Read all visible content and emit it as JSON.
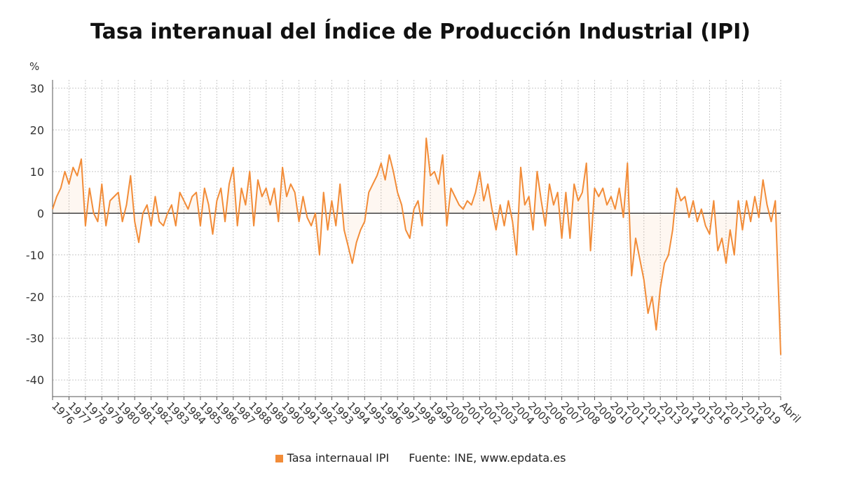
{
  "chart_data": {
    "type": "line",
    "title": "Tasa interanual del Índice de Producción Industrial (IPI)",
    "ylabel": "%",
    "ylim": [
      -44,
      32
    ],
    "yticks": [
      30,
      20,
      10,
      0,
      -10,
      -20,
      -30,
      -40
    ],
    "x_tick_labels": [
      "1976",
      "1977",
      "1978",
      "1979",
      "1980",
      "1981",
      "1982",
      "1983",
      "1984",
      "1985",
      "1986",
      "1987",
      "1988",
      "1989",
      "1990",
      "1991",
      "1992",
      "1993",
      "1994",
      "1995",
      "1996",
      "1997",
      "1998",
      "1999",
      "2000",
      "2001",
      "2002",
      "2003",
      "2004",
      "2005",
      "2006",
      "2007",
      "2008",
      "2009",
      "2010",
      "2011",
      "2012",
      "2013",
      "2014",
      "2015",
      "2016",
      "2017",
      "2018",
      "2019",
      "Abril"
    ],
    "xrange": [
      1976,
      2020.33
    ],
    "grid": true,
    "series": [
      {
        "name": "Tasa internaual IPI",
        "color": "#f28c38",
        "points": [
          [
            1976.0,
            1
          ],
          [
            1976.25,
            4
          ],
          [
            1976.5,
            6
          ],
          [
            1976.75,
            10
          ],
          [
            1977.0,
            7
          ],
          [
            1977.25,
            11
          ],
          [
            1977.5,
            9
          ],
          [
            1977.75,
            13
          ],
          [
            1978.0,
            -3
          ],
          [
            1978.25,
            6
          ],
          [
            1978.5,
            0
          ],
          [
            1978.75,
            -2
          ],
          [
            1979.0,
            7
          ],
          [
            1979.25,
            -3
          ],
          [
            1979.5,
            3
          ],
          [
            1979.75,
            4
          ],
          [
            1980.0,
            5
          ],
          [
            1980.25,
            -2
          ],
          [
            1980.5,
            2
          ],
          [
            1980.75,
            9
          ],
          [
            1981.0,
            -2
          ],
          [
            1981.25,
            -7
          ],
          [
            1981.5,
            0
          ],
          [
            1981.75,
            2
          ],
          [
            1982.0,
            -3
          ],
          [
            1982.25,
            4
          ],
          [
            1982.5,
            -2
          ],
          [
            1982.75,
            -3
          ],
          [
            1983.0,
            0
          ],
          [
            1983.25,
            2
          ],
          [
            1983.5,
            -3
          ],
          [
            1983.75,
            5
          ],
          [
            1984.0,
            3
          ],
          [
            1984.25,
            1
          ],
          [
            1984.5,
            4
          ],
          [
            1984.75,
            5
          ],
          [
            1985.0,
            -3
          ],
          [
            1985.25,
            6
          ],
          [
            1985.5,
            2
          ],
          [
            1985.75,
            -5
          ],
          [
            1986.0,
            3
          ],
          [
            1986.25,
            6
          ],
          [
            1986.5,
            -2
          ],
          [
            1986.75,
            7
          ],
          [
            1987.0,
            11
          ],
          [
            1987.25,
            -3
          ],
          [
            1987.5,
            6
          ],
          [
            1987.75,
            2
          ],
          [
            1988.0,
            10
          ],
          [
            1988.25,
            -3
          ],
          [
            1988.5,
            8
          ],
          [
            1988.75,
            4
          ],
          [
            1989.0,
            6
          ],
          [
            1989.25,
            2
          ],
          [
            1989.5,
            6
          ],
          [
            1989.75,
            -2
          ],
          [
            1990.0,
            11
          ],
          [
            1990.25,
            4
          ],
          [
            1990.5,
            7
          ],
          [
            1990.75,
            5
          ],
          [
            1991.0,
            -2
          ],
          [
            1991.25,
            4
          ],
          [
            1991.5,
            -1
          ],
          [
            1991.75,
            -3
          ],
          [
            1992.0,
            0
          ],
          [
            1992.25,
            -10
          ],
          [
            1992.5,
            5
          ],
          [
            1992.75,
            -4
          ],
          [
            1993.0,
            3
          ],
          [
            1993.25,
            -3
          ],
          [
            1993.5,
            7
          ],
          [
            1993.75,
            -4
          ],
          [
            1994.0,
            -8
          ],
          [
            1994.25,
            -12
          ],
          [
            1994.5,
            -7
          ],
          [
            1994.75,
            -4
          ],
          [
            1995.0,
            -2
          ],
          [
            1995.25,
            5
          ],
          [
            1995.5,
            7
          ],
          [
            1995.75,
            9
          ],
          [
            1996.0,
            12
          ],
          [
            1996.25,
            8
          ],
          [
            1996.5,
            14
          ],
          [
            1996.75,
            10
          ],
          [
            1997.0,
            5
          ],
          [
            1997.25,
            2
          ],
          [
            1997.5,
            -4
          ],
          [
            1997.75,
            -6
          ],
          [
            1998.0,
            1
          ],
          [
            1998.25,
            3
          ],
          [
            1998.5,
            -3
          ],
          [
            1998.75,
            18
          ],
          [
            1999.0,
            9
          ],
          [
            1999.25,
            10
          ],
          [
            1999.5,
            7
          ],
          [
            1999.75,
            14
          ],
          [
            2000.0,
            -3
          ],
          [
            2000.25,
            6
          ],
          [
            2000.5,
            4
          ],
          [
            2000.75,
            2
          ],
          [
            2001.0,
            1
          ],
          [
            2001.25,
            3
          ],
          [
            2001.5,
            2
          ],
          [
            2001.75,
            5
          ],
          [
            2002.0,
            10
          ],
          [
            2002.25,
            3
          ],
          [
            2002.5,
            7
          ],
          [
            2002.75,
            1
          ],
          [
            2003.0,
            -4
          ],
          [
            2003.25,
            2
          ],
          [
            2003.5,
            -3
          ],
          [
            2003.75,
            3
          ],
          [
            2004.0,
            -2
          ],
          [
            2004.25,
            -10
          ],
          [
            2004.5,
            11
          ],
          [
            2004.75,
            2
          ],
          [
            2005.0,
            4
          ],
          [
            2005.25,
            -4
          ],
          [
            2005.5,
            10
          ],
          [
            2005.75,
            3
          ],
          [
            2006.0,
            -3
          ],
          [
            2006.25,
            7
          ],
          [
            2006.5,
            2
          ],
          [
            2006.75,
            5
          ],
          [
            2007.0,
            -6
          ],
          [
            2007.25,
            5
          ],
          [
            2007.5,
            -6
          ],
          [
            2007.75,
            7
          ],
          [
            2008.0,
            3
          ],
          [
            2008.25,
            5
          ],
          [
            2008.5,
            12
          ],
          [
            2008.75,
            -9
          ],
          [
            2009.0,
            6
          ],
          [
            2009.25,
            4
          ],
          [
            2009.5,
            6
          ],
          [
            2009.75,
            2
          ],
          [
            2010.0,
            4
          ],
          [
            2010.25,
            1
          ],
          [
            2010.5,
            6
          ],
          [
            2010.75,
            -1
          ],
          [
            2011.0,
            12
          ],
          [
            2011.25,
            -15
          ],
          [
            2011.5,
            -6
          ],
          [
            2011.75,
            -11
          ],
          [
            2012.0,
            -16
          ],
          [
            2012.25,
            -24
          ],
          [
            2012.5,
            -20
          ],
          [
            2012.75,
            -28
          ],
          [
            2013.0,
            -18
          ],
          [
            2013.25,
            -12
          ],
          [
            2013.5,
            -10
          ],
          [
            2013.75,
            -4
          ],
          [
            2014.0,
            6
          ],
          [
            2014.25,
            3
          ],
          [
            2014.5,
            4
          ],
          [
            2014.75,
            -1
          ],
          [
            2015.0,
            3
          ],
          [
            2015.25,
            -2
          ],
          [
            2015.5,
            1
          ],
          [
            2015.75,
            -3
          ],
          [
            2016.0,
            -5
          ],
          [
            2016.25,
            3
          ],
          [
            2016.5,
            -9
          ],
          [
            2016.75,
            -6
          ],
          [
            2017.0,
            -12
          ],
          [
            2017.25,
            -4
          ],
          [
            2017.5,
            -10
          ],
          [
            2017.75,
            3
          ],
          [
            2018.0,
            -4
          ],
          [
            2018.25,
            3
          ],
          [
            2018.5,
            -2
          ],
          [
            2018.75,
            4
          ],
          [
            2019.0,
            -1
          ],
          [
            2019.25,
            8
          ],
          [
            2019.5,
            2
          ],
          [
            2019.75,
            -2
          ],
          [
            2020.0,
            3
          ],
          [
            2020.33,
            -34
          ]
        ]
      }
    ]
  },
  "legend": {
    "series_label": "Tasa internaual IPI",
    "source": "Fuente: INE, www.epdata.es"
  }
}
